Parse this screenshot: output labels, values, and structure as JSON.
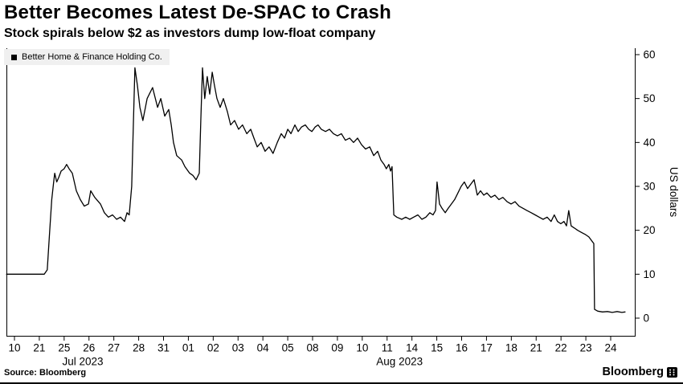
{
  "header": {
    "title": "Better Becomes Latest De-SPAC to Crash",
    "subtitle": "Stock spirals below $2 as investors dump low-float company"
  },
  "legend": {
    "label": "Better Home & Finance Holding Co.",
    "marker_color": "#000000"
  },
  "footer": {
    "source": "Source: Bloomberg",
    "brand": "Bloomberg"
  },
  "chart_data": {
    "type": "line",
    "title": "Better Becomes Latest De-SPAC to Crash",
    "subtitle": "Stock spirals below $2 as investors dump low-float company",
    "series_name": "Better Home & Finance Holding Co.",
    "ylabel": "US dollars",
    "ylim": [
      0,
      60
    ],
    "yticks": [
      0,
      10,
      20,
      30,
      40,
      50,
      60
    ],
    "grid": "off",
    "legend_position": "top-left",
    "line_color": "#000000",
    "x_tick_labels": [
      "10",
      "21",
      "25",
      "26",
      "27",
      "28",
      "31",
      "01",
      "02",
      "03",
      "04",
      "05",
      "08",
      "09",
      "10",
      "11",
      "14",
      "15",
      "16",
      "17",
      "18",
      "21",
      "22",
      "23",
      "24"
    ],
    "month_labels": [
      {
        "text": "Jul 2023",
        "tick_index": 2.75
      },
      {
        "text": "Aug 2023",
        "tick_index": 15.5
      }
    ],
    "points": [
      [
        -0.32,
        10
      ],
      [
        0.6,
        10
      ],
      [
        1.2,
        10
      ],
      [
        1.32,
        11
      ],
      [
        1.42,
        20
      ],
      [
        1.5,
        27
      ],
      [
        1.58,
        31
      ],
      [
        1.62,
        33
      ],
      [
        1.7,
        31
      ],
      [
        1.78,
        32
      ],
      [
        1.88,
        33.5
      ],
      [
        2.0,
        34
      ],
      [
        2.1,
        35
      ],
      [
        2.2,
        34
      ],
      [
        2.33,
        33
      ],
      [
        2.49,
        29
      ],
      [
        2.65,
        27
      ],
      [
        2.81,
        25.5
      ],
      [
        2.98,
        26
      ],
      [
        3.07,
        29
      ],
      [
        3.23,
        27.5
      ],
      [
        3.46,
        26
      ],
      [
        3.62,
        24
      ],
      [
        3.78,
        23
      ],
      [
        3.95,
        23.5
      ],
      [
        4.11,
        22.5
      ],
      [
        4.27,
        23
      ],
      [
        4.43,
        22
      ],
      [
        4.53,
        24
      ],
      [
        4.62,
        23.5
      ],
      [
        4.72,
        30
      ],
      [
        4.79,
        45
      ],
      [
        4.85,
        57
      ],
      [
        4.95,
        53
      ],
      [
        5.05,
        48
      ],
      [
        5.17,
        45
      ],
      [
        5.34,
        50
      ],
      [
        5.56,
        52.5
      ],
      [
        5.76,
        48
      ],
      [
        5.89,
        50
      ],
      [
        6.05,
        46
      ],
      [
        6.21,
        47.5
      ],
      [
        6.31,
        44
      ],
      [
        6.4,
        40
      ],
      [
        6.53,
        37
      ],
      [
        6.73,
        36
      ],
      [
        6.86,
        34.5
      ],
      [
        7.05,
        33
      ],
      [
        7.18,
        32.5
      ],
      [
        7.31,
        31.5
      ],
      [
        7.44,
        33
      ],
      [
        7.5,
        45
      ],
      [
        7.57,
        57
      ],
      [
        7.66,
        50
      ],
      [
        7.76,
        55
      ],
      [
        7.86,
        51
      ],
      [
        7.96,
        56
      ],
      [
        8.05,
        53
      ],
      [
        8.15,
        50
      ],
      [
        8.28,
        48
      ],
      [
        8.41,
        50
      ],
      [
        8.57,
        47
      ],
      [
        8.7,
        44
      ],
      [
        8.86,
        45
      ],
      [
        9.02,
        43
      ],
      [
        9.18,
        44
      ],
      [
        9.35,
        42
      ],
      [
        9.51,
        43
      ],
      [
        9.64,
        41
      ],
      [
        9.77,
        39
      ],
      [
        9.93,
        40
      ],
      [
        10.09,
        38
      ],
      [
        10.25,
        39
      ],
      [
        10.41,
        37.5
      ],
      [
        10.58,
        40
      ],
      [
        10.74,
        42
      ],
      [
        10.87,
        41
      ],
      [
        11.0,
        43
      ],
      [
        11.13,
        42
      ],
      [
        11.29,
        44
      ],
      [
        11.42,
        42.5
      ],
      [
        11.55,
        43.5
      ],
      [
        11.71,
        44
      ],
      [
        11.84,
        43
      ],
      [
        11.97,
        42.5
      ],
      [
        12.1,
        43.5
      ],
      [
        12.22,
        44
      ],
      [
        12.35,
        43
      ],
      [
        12.52,
        42.5
      ],
      [
        12.68,
        43
      ],
      [
        12.84,
        42
      ],
      [
        13.0,
        41.5
      ],
      [
        13.16,
        42
      ],
      [
        13.32,
        40.5
      ],
      [
        13.49,
        41
      ],
      [
        13.65,
        40
      ],
      [
        13.81,
        41
      ],
      [
        13.97,
        39.5
      ],
      [
        14.13,
        38.5
      ],
      [
        14.3,
        39
      ],
      [
        14.46,
        37
      ],
      [
        14.62,
        38
      ],
      [
        14.75,
        36
      ],
      [
        14.88,
        35
      ],
      [
        14.97,
        34
      ],
      [
        15.07,
        35
      ],
      [
        15.14,
        33.5
      ],
      [
        15.2,
        34.5
      ],
      [
        15.27,
        23.5
      ],
      [
        15.39,
        23
      ],
      [
        15.59,
        22.5
      ],
      [
        15.75,
        23
      ],
      [
        15.91,
        22.5
      ],
      [
        16.07,
        23
      ],
      [
        16.24,
        23.5
      ],
      [
        16.4,
        22.5
      ],
      [
        16.56,
        23
      ],
      [
        16.72,
        24
      ],
      [
        16.85,
        23.5
      ],
      [
        16.95,
        24.5
      ],
      [
        17.01,
        31
      ],
      [
        17.11,
        26
      ],
      [
        17.21,
        25
      ],
      [
        17.34,
        24
      ],
      [
        17.46,
        25
      ],
      [
        17.59,
        26
      ],
      [
        17.72,
        27
      ],
      [
        17.85,
        28.5
      ],
      [
        17.98,
        30
      ],
      [
        18.11,
        31
      ],
      [
        18.24,
        29.5
      ],
      [
        18.37,
        30.5
      ],
      [
        18.5,
        31.5
      ],
      [
        18.63,
        28
      ],
      [
        18.76,
        29
      ],
      [
        18.89,
        28
      ],
      [
        19.02,
        28.5
      ],
      [
        19.18,
        27.5
      ],
      [
        19.34,
        28
      ],
      [
        19.5,
        27
      ],
      [
        19.66,
        27.5
      ],
      [
        19.83,
        26.5
      ],
      [
        19.99,
        26
      ],
      [
        20.15,
        26.5
      ],
      [
        20.31,
        25.5
      ],
      [
        20.47,
        25
      ],
      [
        20.63,
        24.5
      ],
      [
        20.8,
        24
      ],
      [
        20.96,
        23.5
      ],
      [
        21.12,
        23
      ],
      [
        21.28,
        22.5
      ],
      [
        21.44,
        23
      ],
      [
        21.6,
        22
      ],
      [
        21.73,
        23.5
      ],
      [
        21.86,
        22
      ],
      [
        21.99,
        21.5
      ],
      [
        22.12,
        22
      ],
      [
        22.22,
        21
      ],
      [
        22.31,
        24.5
      ],
      [
        22.41,
        21
      ],
      [
        22.54,
        20.5
      ],
      [
        22.67,
        20
      ],
      [
        22.83,
        19.5
      ],
      [
        22.99,
        19
      ],
      [
        23.12,
        18.5
      ],
      [
        23.25,
        17.5
      ],
      [
        23.32,
        17
      ],
      [
        23.35,
        2
      ],
      [
        23.48,
        1.6
      ],
      [
        23.67,
        1.4
      ],
      [
        23.87,
        1.5
      ],
      [
        24.06,
        1.3
      ],
      [
        24.26,
        1.5
      ],
      [
        24.45,
        1.3
      ],
      [
        24.58,
        1.4
      ]
    ]
  }
}
